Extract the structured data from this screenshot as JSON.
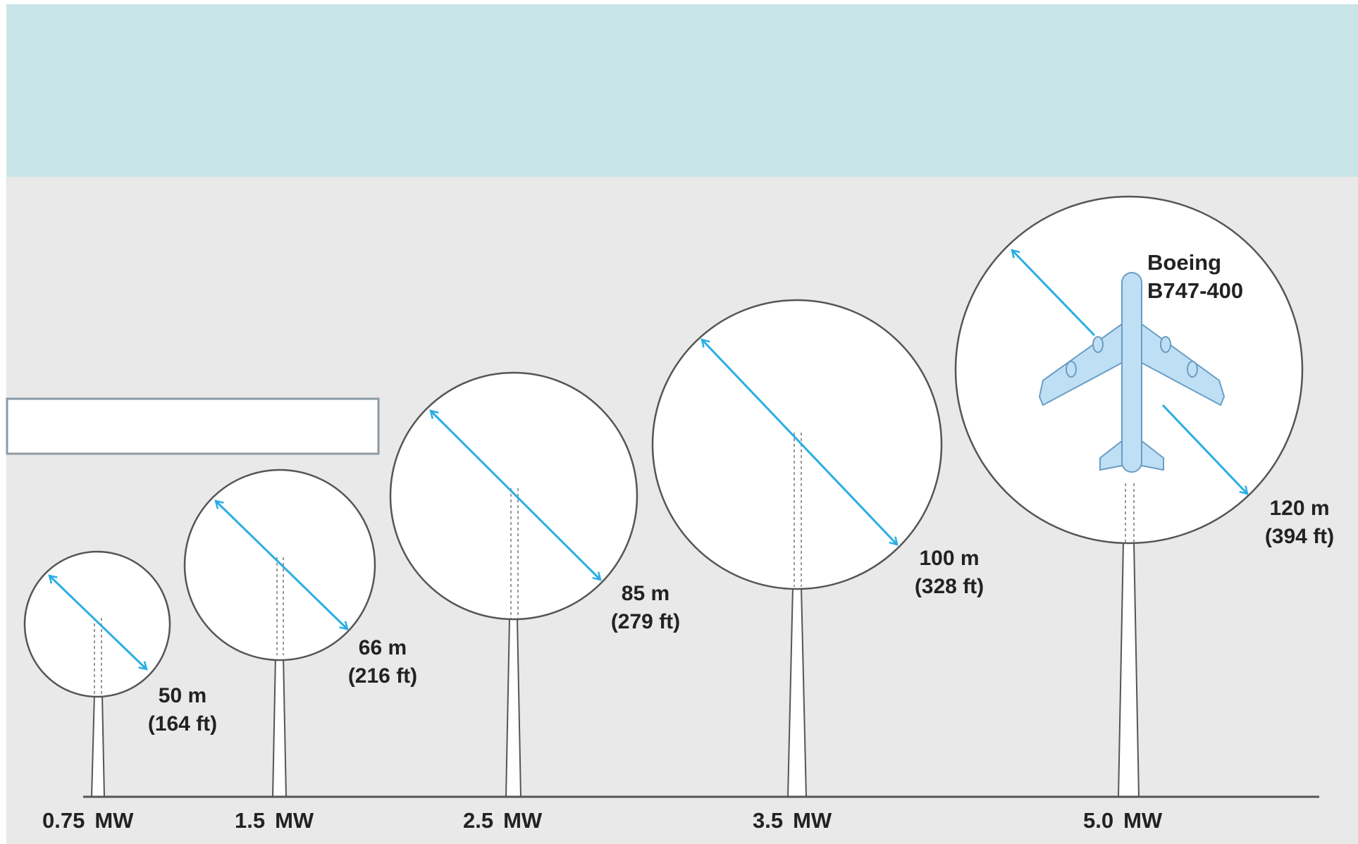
{
  "colors": {
    "sky": "#c9e5e8",
    "ground": "#e9e9e9",
    "arrow": "#29aee3",
    "outline": "#555555",
    "text": "#222222",
    "plane_fill": "#bfdff5",
    "plane_stroke": "#6a9ec4"
  },
  "icons": {
    "arrow": "double-headed-arrow-icon",
    "plane": "airplane-icon"
  },
  "turbines": [
    {
      "id": "t1",
      "rating": "0.75",
      "unit": "MW",
      "diameter_m": "50 m",
      "diameter_ft": "(164 ft)"
    },
    {
      "id": "t2",
      "rating": "1.5",
      "unit": "MW",
      "diameter_m": "66 m",
      "diameter_ft": "(216 ft)"
    },
    {
      "id": "t3",
      "rating": "2.5",
      "unit": "MW",
      "diameter_m": "85 m",
      "diameter_ft": "(279 ft)"
    },
    {
      "id": "t4",
      "rating": "3.5",
      "unit": "MW",
      "diameter_m": "100 m",
      "diameter_ft": "(328 ft)"
    },
    {
      "id": "t5",
      "rating": "5.0",
      "unit": "MW",
      "diameter_m": "120 m",
      "diameter_ft": "(394 ft)"
    }
  ],
  "aircraft": {
    "line1": "Boeing",
    "line2": "B747-400"
  }
}
